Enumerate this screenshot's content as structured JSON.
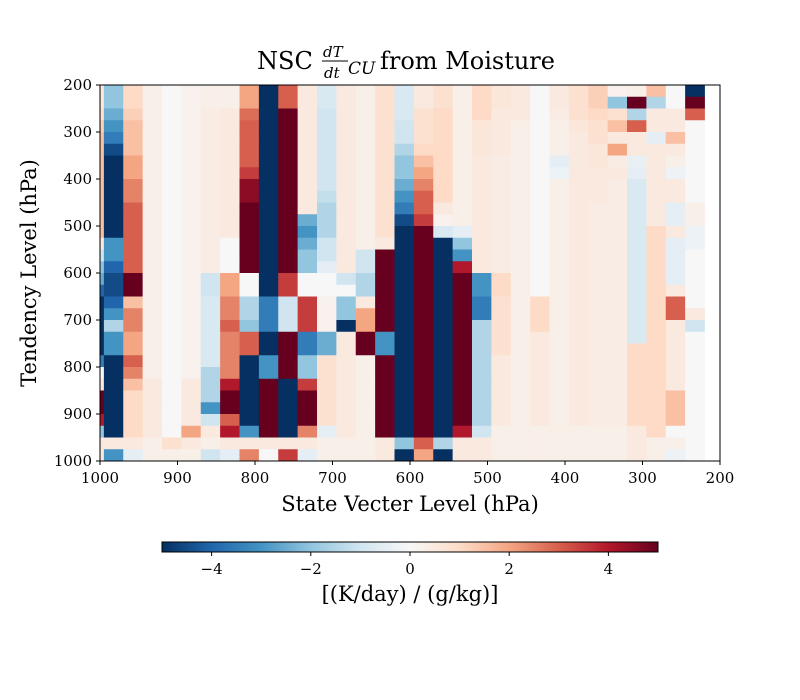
{
  "chart_data": {
    "type": "heatmap",
    "title_prefix": "NSC",
    "title_fraction_numerator": "dT",
    "title_fraction_denominator": "dt",
    "title_subscript": "CU",
    "title_suffix": "from Moisture",
    "xlabel": "State Vecter Level (hPa)",
    "ylabel": "Tendency Level (hPa)",
    "x_range": [
      1000,
      200
    ],
    "y_range": [
      200,
      1000
    ],
    "x_ticks": [
      1000,
      900,
      800,
      700,
      600,
      500,
      400,
      300,
      200
    ],
    "y_ticks": [
      200,
      300,
      400,
      500,
      600,
      700,
      800,
      900,
      1000
    ],
    "colorbar": {
      "label": "[(K/day) / (g/kg)]",
      "ticks": [
        "−4",
        "−2",
        "0",
        "2",
        "4"
      ],
      "tick_values": [
        -4,
        -2,
        0,
        2,
        4
      ],
      "vmin": -5,
      "vmax": 5,
      "colormap": "RdBu_r"
    },
    "x_centers_hPa": [
      1007.5,
      982.5,
      957.5,
      932.5,
      907.5,
      882.5,
      857.5,
      832.5,
      807.5,
      782.5,
      757.5,
      732.5,
      707.5,
      682.5,
      657.5,
      632.5,
      607.5,
      582.5,
      557.5,
      532.5,
      507.5,
      482.5,
      457.5,
      432.5,
      407.5,
      382.5,
      357.5,
      332.5,
      307.5,
      282.5,
      257.5,
      232.5
    ],
    "y_centers_hPa": [
      212.5,
      237.5,
      262.5,
      287.5,
      312.5,
      337.5,
      362.5,
      387.5,
      412.5,
      437.5,
      462.5,
      487.5,
      512.5,
      537.5,
      562.5,
      587.5,
      612.5,
      637.5,
      662.5,
      687.5,
      712.5,
      737.5,
      762.5,
      787.5,
      812.5,
      837.5,
      862.5,
      887.5,
      912.5,
      937.5,
      962.5,
      987.5
    ],
    "values": [
      [
        0.5,
        -2.0,
        1.0,
        0.3,
        0.0,
        0.2,
        0.3,
        0.3,
        2.0,
        -5.0,
        3.0,
        0.5,
        -0.8,
        0.5,
        0.3,
        0.8,
        -0.8,
        0.5,
        0.8,
        0.3,
        1.0,
        0.6,
        0.5,
        0.0,
        0.5,
        0.8,
        1.2,
        0.2,
        0.3,
        1.5,
        0.0,
        -5.0
      ],
      [
        0.5,
        -2.0,
        1.0,
        0.3,
        0.0,
        0.2,
        0.3,
        0.3,
        2.0,
        -5.0,
        3.0,
        0.5,
        -0.8,
        0.5,
        0.3,
        0.8,
        -0.8,
        0.5,
        0.8,
        0.3,
        1.0,
        0.6,
        0.5,
        0.0,
        0.5,
        0.8,
        1.2,
        -2.0,
        5.0,
        -1.5,
        0.0,
        5.0
      ],
      [
        0.8,
        -2.5,
        1.2,
        0.3,
        0.0,
        0.2,
        0.4,
        0.5,
        2.8,
        -5.0,
        5.0,
        0.5,
        -1.0,
        0.5,
        0.3,
        0.8,
        -0.8,
        0.8,
        1.0,
        0.3,
        1.0,
        0.5,
        0.5,
        0.0,
        0.4,
        0.8,
        1.0,
        0.8,
        -1.5,
        0.5,
        0.5,
        3.0
      ],
      [
        1.2,
        -3.0,
        1.5,
        0.3,
        0.0,
        0.2,
        0.4,
        0.5,
        3.0,
        -5.0,
        5.0,
        0.5,
        -1.0,
        0.5,
        0.3,
        0.8,
        -1.0,
        0.8,
        1.0,
        0.3,
        0.6,
        0.5,
        0.3,
        0.0,
        0.3,
        0.6,
        0.8,
        1.5,
        3.0,
        0.5,
        0.5,
        0.0
      ],
      [
        1.5,
        -3.5,
        1.5,
        0.3,
        0.0,
        0.2,
        0.4,
        0.5,
        3.0,
        -5.0,
        5.0,
        0.5,
        -1.0,
        0.5,
        0.3,
        0.8,
        -1.0,
        0.8,
        1.0,
        0.3,
        0.6,
        0.5,
        0.3,
        0.0,
        0.3,
        0.5,
        0.8,
        0.5,
        0.5,
        -0.5,
        1.5,
        0.0
      ],
      [
        1.5,
        -4.5,
        1.5,
        0.3,
        0.0,
        0.2,
        0.4,
        0.5,
        3.0,
        -5.0,
        5.0,
        0.5,
        -1.0,
        0.5,
        0.3,
        0.8,
        -1.5,
        1.0,
        1.0,
        0.3,
        0.6,
        0.5,
        0.3,
        0.0,
        0.3,
        0.5,
        0.6,
        2.0,
        0.5,
        0.5,
        0.5,
        0.0
      ],
      [
        1.5,
        -5.0,
        2.0,
        0.3,
        0.0,
        0.2,
        0.4,
        0.5,
        3.0,
        -5.0,
        5.0,
        0.5,
        -1.0,
        0.5,
        0.3,
        0.8,
        -2.0,
        1.5,
        1.0,
        0.3,
        0.5,
        0.4,
        0.3,
        0.0,
        -0.5,
        0.5,
        0.6,
        0.4,
        -0.4,
        0.5,
        0.3,
        0.0
      ],
      [
        1.5,
        -5.0,
        2.0,
        0.3,
        0.0,
        0.2,
        0.4,
        0.5,
        3.5,
        -5.0,
        5.0,
        0.5,
        -1.0,
        0.5,
        0.3,
        0.8,
        -2.0,
        2.0,
        1.0,
        0.3,
        0.5,
        0.4,
        0.3,
        0.0,
        -0.3,
        0.5,
        0.5,
        0.5,
        -0.5,
        0.5,
        -0.3,
        0.0
      ],
      [
        1.5,
        -5.0,
        2.5,
        0.3,
        0.0,
        0.2,
        0.4,
        0.5,
        4.5,
        -5.0,
        5.0,
        0.5,
        -1.0,
        0.5,
        0.3,
        0.8,
        -2.5,
        2.5,
        1.0,
        0.3,
        0.5,
        0.4,
        0.3,
        0.0,
        0.3,
        0.5,
        0.5,
        0.4,
        -0.8,
        0.5,
        0.5,
        0.0
      ],
      [
        1.5,
        -5.0,
        2.5,
        0.3,
        0.0,
        0.2,
        0.4,
        0.5,
        4.5,
        -5.0,
        5.0,
        0.5,
        -1.2,
        0.5,
        0.3,
        0.8,
        -3.0,
        3.0,
        1.0,
        0.3,
        0.5,
        0.4,
        0.3,
        0.0,
        0.3,
        0.5,
        0.5,
        0.4,
        -0.8,
        0.5,
        0.5,
        0.0
      ],
      [
        1.5,
        -5.0,
        3.0,
        0.3,
        0.0,
        0.2,
        0.4,
        0.5,
        5.0,
        -5.0,
        5.0,
        0.5,
        -1.5,
        0.5,
        0.3,
        0.8,
        -3.5,
        3.0,
        0.5,
        0.3,
        0.5,
        0.4,
        0.3,
        0.0,
        0.3,
        0.5,
        0.4,
        0.4,
        -0.8,
        0.5,
        -0.5,
        0.3
      ],
      [
        1.5,
        -5.0,
        3.0,
        0.3,
        0.0,
        0.2,
        0.4,
        0.5,
        5.0,
        -5.0,
        5.0,
        -2.5,
        -1.5,
        0.5,
        0.3,
        0.8,
        -4.5,
        3.5,
        0.2,
        0.3,
        0.5,
        0.4,
        0.3,
        0.0,
        0.3,
        0.5,
        0.4,
        0.4,
        -0.8,
        0.5,
        -0.5,
        0.3
      ],
      [
        1.5,
        -5.0,
        3.0,
        0.3,
        0.0,
        0.2,
        0.4,
        0.5,
        5.0,
        -5.0,
        5.0,
        -3.0,
        -1.5,
        0.5,
        0.3,
        0.8,
        -5.0,
        5.0,
        -0.8,
        -0.5,
        0.5,
        0.4,
        0.3,
        0.0,
        0.3,
        0.5,
        0.4,
        0.4,
        -0.8,
        1.0,
        0.5,
        -0.3
      ],
      [
        0.5,
        -3.0,
        3.0,
        0.3,
        0.0,
        0.2,
        0.4,
        0.0,
        5.0,
        -5.0,
        5.0,
        -2.5,
        -1.0,
        0.5,
        0.3,
        0.5,
        -5.0,
        5.0,
        -5.0,
        -2.0,
        0.5,
        0.4,
        0.3,
        0.0,
        0.3,
        0.5,
        0.4,
        0.4,
        -0.8,
        1.0,
        -0.5,
        -0.3
      ],
      [
        -1.0,
        -3.0,
        3.0,
        0.3,
        0.0,
        0.2,
        0.4,
        0.0,
        5.0,
        -5.0,
        5.0,
        -2.0,
        -1.0,
        0.5,
        -1.0,
        5.0,
        -5.0,
        5.0,
        -5.0,
        -3.0,
        0.5,
        0.4,
        0.3,
        0.0,
        0.3,
        0.5,
        0.4,
        0.4,
        -0.8,
        1.0,
        -0.5,
        0.0
      ],
      [
        -2.0,
        -4.0,
        3.0,
        0.3,
        0.0,
        0.2,
        0.4,
        0.0,
        5.0,
        -5.0,
        5.0,
        -2.0,
        -0.5,
        0.5,
        -1.0,
        5.0,
        -5.0,
        5.0,
        -5.0,
        4.0,
        0.5,
        0.4,
        0.3,
        0.0,
        0.3,
        0.5,
        0.4,
        0.4,
        -0.8,
        1.0,
        -0.5,
        0.0
      ],
      [
        -2.5,
        -4.5,
        5.0,
        0.3,
        0.0,
        0.2,
        -1.0,
        2.0,
        0.0,
        -5.0,
        3.5,
        0.0,
        0.0,
        -1.0,
        -1.5,
        5.0,
        -5.0,
        5.0,
        -5.0,
        5.0,
        -3.0,
        1.0,
        0.3,
        0.0,
        0.3,
        0.5,
        0.4,
        0.4,
        -0.8,
        1.0,
        -0.5,
        0.0
      ],
      [
        -4.0,
        -4.5,
        5.0,
        0.3,
        0.0,
        0.2,
        -1.0,
        2.0,
        0.0,
        -5.0,
        3.5,
        0.0,
        0.0,
        0.0,
        -1.5,
        5.0,
        -5.0,
        5.0,
        -5.0,
        5.0,
        -3.0,
        1.0,
        0.3,
        0.0,
        0.3,
        0.5,
        0.4,
        0.4,
        -0.8,
        1.0,
        0.5,
        0.0
      ],
      [
        -5.0,
        -4.0,
        1.5,
        0.3,
        0.0,
        0.2,
        -0.8,
        2.5,
        -1.5,
        -3.5,
        -1.0,
        3.5,
        0.2,
        -2.0,
        0.5,
        5.0,
        -5.0,
        5.0,
        -5.0,
        5.0,
        -3.5,
        0.8,
        0.3,
        1.0,
        0.3,
        0.5,
        0.4,
        0.4,
        -0.8,
        1.0,
        3.0,
        0.0
      ],
      [
        -5.0,
        -3.0,
        2.5,
        0.3,
        0.0,
        0.2,
        -0.8,
        2.5,
        -1.5,
        -3.5,
        -1.0,
        3.5,
        0.2,
        -2.0,
        2.0,
        5.0,
        -5.0,
        5.0,
        -5.0,
        5.0,
        -3.5,
        0.8,
        0.3,
        1.0,
        0.3,
        0.5,
        0.4,
        0.4,
        -0.8,
        1.0,
        3.0,
        0.5
      ],
      [
        -5.0,
        -1.5,
        2.5,
        0.3,
        0.0,
        0.2,
        -0.8,
        3.0,
        -2.0,
        -3.5,
        -1.0,
        3.5,
        0.2,
        -5.0,
        2.0,
        5.0,
        -5.0,
        5.0,
        -5.0,
        5.0,
        -1.5,
        0.8,
        0.3,
        1.0,
        0.3,
        0.5,
        0.4,
        0.4,
        -0.8,
        1.0,
        0.5,
        -1.0
      ],
      [
        -5.0,
        -3.0,
        2.0,
        0.3,
        0.0,
        0.2,
        -0.8,
        2.5,
        3.0,
        -5.0,
        5.0,
        -3.5,
        -2.5,
        0.5,
        5.0,
        -3.0,
        -5.0,
        5.0,
        -5.0,
        5.0,
        -1.5,
        0.8,
        0.3,
        0.5,
        0.3,
        0.5,
        0.4,
        0.4,
        -0.8,
        1.0,
        0.5,
        0.0
      ],
      [
        -5.0,
        -3.0,
        2.0,
        0.3,
        0.0,
        0.2,
        -0.8,
        2.5,
        3.0,
        -5.0,
        5.0,
        -3.5,
        -2.5,
        0.5,
        5.0,
        -3.0,
        -5.0,
        5.0,
        -5.0,
        5.0,
        -1.5,
        0.8,
        0.3,
        0.5,
        0.3,
        0.5,
        0.4,
        0.4,
        1.0,
        1.0,
        0.5,
        0.0
      ],
      [
        -3.5,
        -5.0,
        3.0,
        0.3,
        0.0,
        0.2,
        -0.8,
        2.5,
        -5.0,
        -3.0,
        5.0,
        -2.0,
        0.8,
        0.5,
        0.3,
        5.0,
        -5.0,
        5.0,
        -5.0,
        5.0,
        -1.5,
        0.5,
        0.3,
        0.5,
        0.3,
        0.5,
        0.4,
        0.4,
        1.0,
        1.0,
        0.5,
        0.0
      ],
      [
        0.0,
        -5.0,
        2.5,
        0.3,
        0.0,
        0.2,
        -1.5,
        2.5,
        -5.0,
        -3.0,
        5.0,
        -2.0,
        0.8,
        0.5,
        0.3,
        5.0,
        -5.0,
        5.0,
        -5.0,
        5.0,
        -1.5,
        0.5,
        0.3,
        0.5,
        0.3,
        0.5,
        0.4,
        0.4,
        1.0,
        1.0,
        0.5,
        0.0
      ],
      [
        0.5,
        -5.0,
        1.5,
        0.5,
        0.0,
        0.5,
        -1.5,
        4.0,
        -5.0,
        5.0,
        -5.0,
        3.5,
        0.8,
        0.5,
        0.3,
        5.0,
        -5.0,
        5.0,
        -5.0,
        5.0,
        -1.5,
        0.5,
        0.3,
        0.5,
        0.3,
        0.5,
        0.4,
        0.4,
        1.0,
        1.0,
        0.5,
        0.0
      ],
      [
        5.0,
        -5.0,
        1.0,
        0.5,
        0.0,
        0.5,
        -1.5,
        5.0,
        -5.0,
        5.0,
        -5.0,
        5.0,
        0.8,
        0.5,
        0.3,
        5.0,
        -5.0,
        5.0,
        -5.0,
        5.0,
        -1.5,
        0.5,
        0.3,
        0.5,
        0.3,
        0.5,
        0.4,
        0.4,
        1.0,
        1.0,
        1.5,
        0.0
      ],
      [
        5.0,
        -5.0,
        1.0,
        0.5,
        0.0,
        0.5,
        -3.0,
        5.0,
        -5.0,
        5.0,
        -5.0,
        5.0,
        0.8,
        0.5,
        0.3,
        5.0,
        -5.0,
        5.0,
        -5.0,
        5.0,
        -1.5,
        0.5,
        0.3,
        0.5,
        0.3,
        0.5,
        0.4,
        0.4,
        1.0,
        1.0,
        1.5,
        0.0
      ],
      [
        4.0,
        -5.0,
        1.0,
        0.5,
        0.0,
        0.5,
        -1.0,
        3.0,
        -5.0,
        5.0,
        -5.0,
        5.0,
        0.8,
        0.5,
        0.3,
        5.0,
        -5.0,
        5.0,
        -5.0,
        5.0,
        -1.5,
        0.5,
        0.3,
        0.5,
        0.3,
        0.5,
        0.4,
        0.4,
        1.0,
        1.0,
        1.5,
        0.0
      ],
      [
        -2.0,
        -5.0,
        1.0,
        0.5,
        0.0,
        2.0,
        0.5,
        4.0,
        -3.0,
        5.0,
        -5.0,
        2.5,
        -0.5,
        0.5,
        0.3,
        5.0,
        -5.0,
        5.0,
        -5.0,
        4.0,
        -1.0,
        0.3,
        0.3,
        0.3,
        0.3,
        0.3,
        0.3,
        0.3,
        0.5,
        1.0,
        0.0,
        0.0
      ],
      [
        0.5,
        0.5,
        0.5,
        0.3,
        0.8,
        0.5,
        0.3,
        0.5,
        0.5,
        0.5,
        0.5,
        0.5,
        0.3,
        0.3,
        0.3,
        0.5,
        -2.0,
        3.0,
        -1.5,
        0.5,
        0.5,
        0.3,
        0.3,
        0.3,
        0.3,
        0.3,
        0.3,
        0.3,
        0.5,
        0.3,
        0.3,
        0.0
      ],
      [
        0.5,
        -3.0,
        -0.5,
        0.3,
        0.3,
        0.3,
        -1.0,
        -0.5,
        2.5,
        0.0,
        3.5,
        -0.5,
        0.3,
        0.3,
        0.3,
        0.5,
        -5.0,
        2.0,
        -5.0,
        0.5,
        0.5,
        0.3,
        0.3,
        0.3,
        0.3,
        0.3,
        0.3,
        0.3,
        0.5,
        0.3,
        -0.3,
        0.0
      ]
    ]
  }
}
